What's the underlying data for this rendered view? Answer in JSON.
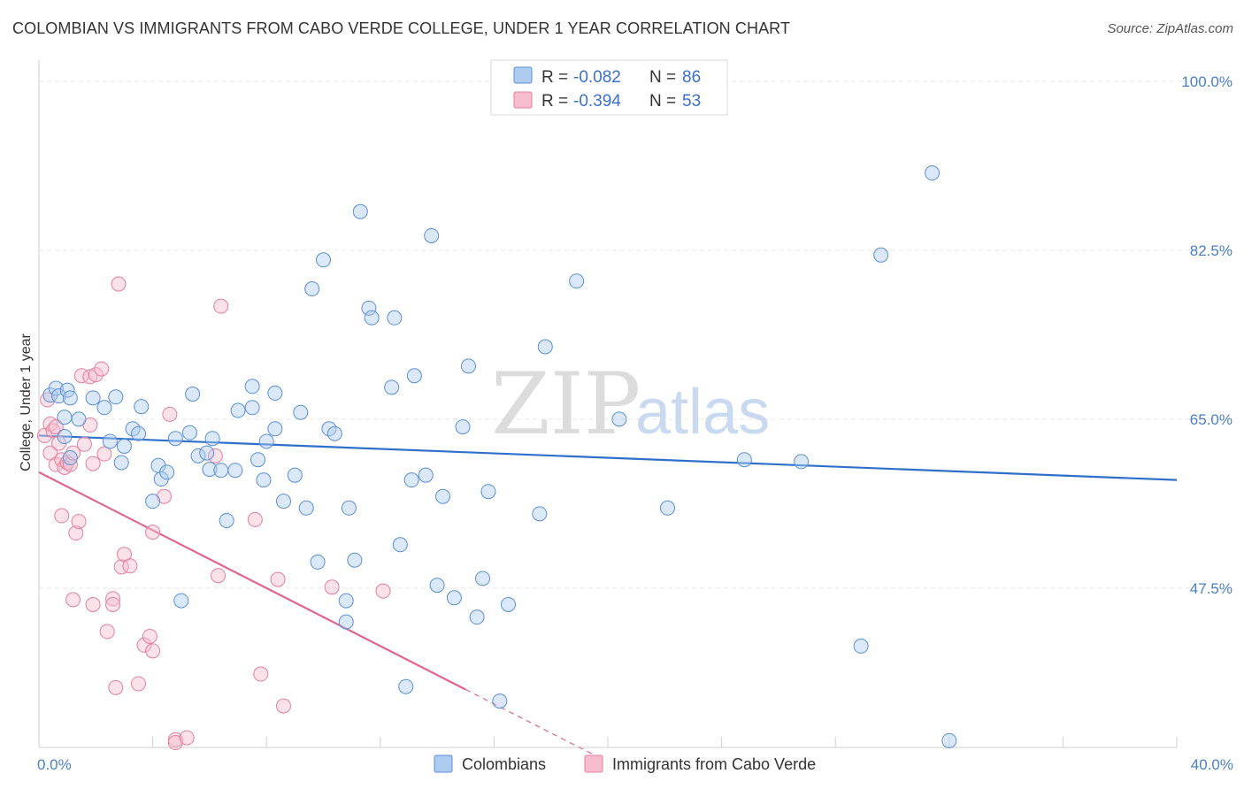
{
  "title": "COLOMBIAN VS IMMIGRANTS FROM CABO VERDE COLLEGE, UNDER 1 YEAR CORRELATION CHART",
  "source": "Source: ZipAtlas.com",
  "watermark": {
    "zip": "ZIP",
    "atlas": "atlas"
  },
  "colors": {
    "blue_fill": "#aecbf0",
    "blue_stroke": "#5b8fd6",
    "blue_line": "#2f6fcc",
    "pink_fill": "#f7bccd",
    "pink_stroke": "#e57fa0",
    "pink_line": "#e0668f",
    "grid": "#e6e6e6",
    "tick_text": "#4a7fc9"
  },
  "legend": {
    "rows": [
      {
        "r_label": "R = ",
        "r_value": "-0.082",
        "n_label": "N = ",
        "n_value": "86",
        "color": "blue"
      },
      {
        "r_label": "R = ",
        "r_value": "-0.394",
        "n_label": "N = ",
        "n_value": "53",
        "color": "pink"
      }
    ]
  },
  "bottom_legend": [
    "Colombians",
    "Immigrants from Cabo Verde"
  ],
  "chart_data": {
    "type": "scatter",
    "ylabel": "College, Under 1 year",
    "xlim": [
      0,
      40
    ],
    "ylim": [
      31,
      102
    ],
    "x_tick_labels": [
      {
        "value": 0,
        "label": "0.0%"
      },
      {
        "value": 40,
        "label": "40.0%"
      }
    ],
    "y_tick_labels": [
      {
        "value": 100,
        "label": "100.0%"
      },
      {
        "value": 82.5,
        "label": "82.5%"
      },
      {
        "value": 65,
        "label": "65.0%"
      },
      {
        "value": 47.5,
        "label": "47.5%"
      }
    ],
    "y_grid": [
      100,
      82.5,
      65,
      47.5
    ],
    "series": [
      {
        "name": "Colombians",
        "color": "blue",
        "points": [
          [
            0.4,
            67.5
          ],
          [
            0.6,
            68.2
          ],
          [
            0.7,
            67.4
          ],
          [
            0.9,
            63.2
          ],
          [
            0.9,
            65.2
          ],
          [
            1.0,
            68.0
          ],
          [
            1.1,
            67.2
          ],
          [
            1.1,
            61.0
          ],
          [
            1.4,
            65.0
          ],
          [
            1.9,
            67.2
          ],
          [
            2.3,
            66.2
          ],
          [
            2.5,
            62.7
          ],
          [
            2.7,
            67.3
          ],
          [
            2.9,
            60.5
          ],
          [
            3.0,
            62.2
          ],
          [
            3.3,
            64.0
          ],
          [
            3.5,
            63.5
          ],
          [
            3.6,
            66.3
          ],
          [
            4.0,
            56.5
          ],
          [
            4.2,
            60.2
          ],
          [
            4.3,
            58.8
          ],
          [
            4.5,
            59.5
          ],
          [
            4.8,
            63.0
          ],
          [
            5.0,
            46.2
          ],
          [
            5.3,
            63.6
          ],
          [
            5.4,
            67.6
          ],
          [
            5.6,
            61.2
          ],
          [
            5.9,
            61.5
          ],
          [
            6.0,
            59.8
          ],
          [
            6.1,
            63.0
          ],
          [
            6.4,
            59.7
          ],
          [
            6.6,
            54.5
          ],
          [
            6.9,
            59.7
          ],
          [
            7.0,
            65.9
          ],
          [
            7.5,
            68.4
          ],
          [
            7.5,
            66.2
          ],
          [
            7.7,
            60.8
          ],
          [
            7.9,
            58.7
          ],
          [
            8.0,
            62.7
          ],
          [
            8.3,
            64.0
          ],
          [
            8.3,
            67.7
          ],
          [
            8.6,
            56.5
          ],
          [
            9.0,
            59.2
          ],
          [
            9.2,
            65.7
          ],
          [
            9.4,
            55.8
          ],
          [
            9.6,
            78.5
          ],
          [
            9.8,
            50.2
          ],
          [
            10.0,
            81.5
          ],
          [
            10.2,
            64.0
          ],
          [
            10.4,
            63.5
          ],
          [
            10.8,
            44.0
          ],
          [
            10.8,
            46.2
          ],
          [
            10.9,
            55.8
          ],
          [
            11.1,
            50.4
          ],
          [
            11.3,
            86.5
          ],
          [
            11.6,
            76.5
          ],
          [
            11.7,
            75.5
          ],
          [
            12.4,
            68.3
          ],
          [
            12.5,
            75.5
          ],
          [
            12.7,
            52.0
          ],
          [
            13.1,
            58.7
          ],
          [
            13.2,
            69.5
          ],
          [
            13.6,
            59.2
          ],
          [
            13.8,
            84.0
          ],
          [
            14.0,
            47.8
          ],
          [
            14.6,
            46.5
          ],
          [
            14.9,
            64.2
          ],
          [
            15.1,
            70.5
          ],
          [
            15.4,
            44.5
          ],
          [
            15.6,
            48.5
          ],
          [
            15.8,
            57.5
          ],
          [
            16.2,
            35.8
          ],
          [
            17.6,
            55.2
          ],
          [
            17.8,
            72.5
          ],
          [
            18.9,
            79.3
          ],
          [
            20.4,
            65.0
          ],
          [
            22.1,
            55.8
          ],
          [
            24.8,
            60.8
          ],
          [
            26.8,
            60.6
          ],
          [
            28.9,
            41.5
          ],
          [
            29.6,
            82.0
          ],
          [
            31.4,
            90.5
          ],
          [
            32.0,
            31.7
          ],
          [
            14.2,
            57.0
          ],
          [
            12.9,
            37.3
          ],
          [
            16.5,
            45.8
          ]
        ]
      },
      {
        "name": "Immigrants from Cabo Verde",
        "color": "pink",
        "points": [
          [
            0.2,
            63.3
          ],
          [
            0.3,
            67.0
          ],
          [
            0.4,
            64.5
          ],
          [
            0.4,
            61.5
          ],
          [
            0.5,
            63.8
          ],
          [
            0.6,
            64.2
          ],
          [
            0.6,
            60.3
          ],
          [
            0.7,
            62.5
          ],
          [
            0.8,
            60.8
          ],
          [
            0.8,
            55.0
          ],
          [
            0.9,
            60.0
          ],
          [
            1.0,
            60.5
          ],
          [
            1.1,
            60.3
          ],
          [
            1.2,
            61.5
          ],
          [
            1.2,
            46.3
          ],
          [
            1.3,
            53.2
          ],
          [
            1.4,
            54.4
          ],
          [
            1.5,
            69.5
          ],
          [
            1.6,
            62.4
          ],
          [
            1.8,
            69.4
          ],
          [
            1.8,
            64.4
          ],
          [
            1.9,
            45.8
          ],
          [
            1.9,
            60.4
          ],
          [
            2.0,
            69.6
          ],
          [
            2.2,
            70.2
          ],
          [
            2.3,
            61.4
          ],
          [
            2.4,
            43.0
          ],
          [
            2.6,
            46.4
          ],
          [
            2.6,
            45.8
          ],
          [
            2.7,
            37.2
          ],
          [
            2.8,
            79.0
          ],
          [
            2.9,
            49.7
          ],
          [
            3.0,
            51.0
          ],
          [
            3.2,
            49.8
          ],
          [
            3.5,
            37.6
          ],
          [
            3.7,
            41.6
          ],
          [
            3.9,
            42.5
          ],
          [
            4.0,
            41.0
          ],
          [
            4.0,
            53.3
          ],
          [
            4.4,
            57.0
          ],
          [
            4.6,
            65.5
          ],
          [
            4.8,
            31.8
          ],
          [
            4.8,
            31.5
          ],
          [
            5.2,
            32.0
          ],
          [
            6.3,
            48.8
          ],
          [
            6.4,
            76.7
          ],
          [
            6.2,
            61.2
          ],
          [
            7.6,
            54.6
          ],
          [
            7.8,
            38.6
          ],
          [
            8.4,
            48.4
          ],
          [
            8.6,
            35.3
          ],
          [
            10.3,
            47.6
          ],
          [
            12.1,
            47.2
          ]
        ]
      }
    ],
    "trendlines": [
      {
        "series": "Colombians",
        "x0": 0,
        "y0": 63.3,
        "x1": 40,
        "y1": 58.7,
        "style": "solid"
      },
      {
        "series": "Immigrants from Cabo Verde",
        "x0": 0,
        "y0": 59.5,
        "x1": 15,
        "y1": 37.0,
        "style": "solid"
      },
      {
        "series": "Immigrants from Cabo Verde",
        "x0": 15,
        "y0": 37.0,
        "x1": 19.6,
        "y1": 30.1,
        "style": "dashed"
      }
    ]
  }
}
